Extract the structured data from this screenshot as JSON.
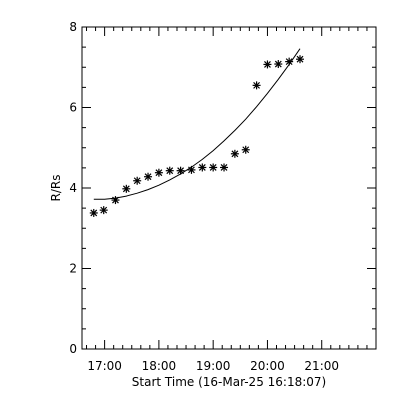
{
  "chart_data": {
    "type": "scatter",
    "xlabel": "Start Time (16-Mar-25 16:18:07)",
    "ylabel": "R/Rs",
    "x_unit": "time of day (16-Mar-25)",
    "xlim": [
      "16:35",
      "22:00"
    ],
    "ylim": [
      0,
      8
    ],
    "x_ticks": [
      "17:00",
      "18:00",
      "19:00",
      "20:00",
      "21:00"
    ],
    "y_ticks": [
      "0",
      "2",
      "4",
      "6",
      "8"
    ],
    "grid": false,
    "legend": "none",
    "marker": "asterisk",
    "series": [
      {
        "style": "points",
        "x": [
          "16:48",
          "16:59",
          "17:12",
          "17:24",
          "17:36",
          "17:48",
          "18:00",
          "18:12",
          "18:24",
          "18:36",
          "18:48",
          "19:00",
          "19:12",
          "19:24",
          "19:36",
          "19:48",
          "20:00",
          "20:12",
          "20:24",
          "20:36"
        ],
        "y": [
          3.38,
          3.45,
          3.7,
          3.98,
          4.18,
          4.28,
          4.38,
          4.43,
          4.43,
          4.45,
          4.51,
          4.51,
          4.51,
          4.85,
          4.95,
          6.55,
          7.07,
          7.08,
          7.14,
          7.2
        ]
      },
      {
        "style": "fit-line",
        "x": [
          "16:48",
          "17:00",
          "17:12",
          "17:24",
          "17:36",
          "17:48",
          "18:00",
          "18:12",
          "18:24",
          "18:36",
          "18:48",
          "19:00",
          "19:12",
          "19:24",
          "19:36",
          "19:48",
          "20:00",
          "20:12",
          "20:24",
          "20:36"
        ],
        "y": [
          3.72,
          3.72,
          3.75,
          3.8,
          3.87,
          3.96,
          4.07,
          4.2,
          4.35,
          4.52,
          4.71,
          4.93,
          5.17,
          5.43,
          5.71,
          6.02,
          6.35,
          6.7,
          7.07,
          7.46
        ]
      }
    ]
  }
}
